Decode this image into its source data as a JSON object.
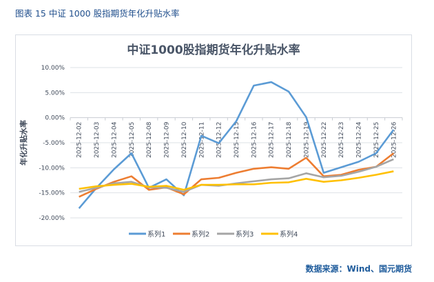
{
  "figure_label": "图表 15  中证 1000 股指期货年化升贴水率",
  "source": "数据来源：Wind、国元期货",
  "chart_data": {
    "type": "line",
    "title": "中证1000股指期货年化升贴水率",
    "xlabel": "",
    "ylabel": "年化升贴水率",
    "ylim": [
      -20,
      10
    ],
    "yticks": [
      "10.00%",
      "5.00%",
      "0.00%",
      "-5.00%",
      "-10.00%",
      "-15.00%",
      "-20.00%"
    ],
    "ytick_values": [
      10,
      5,
      0,
      -5,
      -10,
      -15,
      -20
    ],
    "grid": true,
    "legend": "bottom",
    "categories": [
      "2025-12-02",
      "2025-12-03",
      "2025-12-04",
      "2025-12-05",
      "2025-12-08",
      "2025-12-09",
      "2025-12-10",
      "2025-12-11",
      "2025-12-12",
      "2025-12-15",
      "2025-12-16",
      "2025-12-17",
      "2025-12-18",
      "2025-12-19",
      "2025-12-22",
      "2025-12-23",
      "2025-12-24",
      "2025-12-25",
      "2025-12-26"
    ],
    "series": [
      {
        "name": "系列1",
        "color": "#5b9bd5",
        "values": [
          -18.1,
          -14.0,
          -10.3,
          -7.1,
          -14.0,
          -12.3,
          -15.5,
          -3.6,
          -5.1,
          -0.7,
          6.4,
          7.1,
          5.2,
          0.1,
          -11.0,
          -9.9,
          -8.8,
          -7.1,
          -2.4
        ]
      },
      {
        "name": "系列2",
        "color": "#ed7d31",
        "values": [
          -15.8,
          -14.2,
          -12.8,
          -11.7,
          -14.4,
          -13.9,
          -15.3,
          -12.3,
          -12.0,
          -11.0,
          -10.2,
          -9.9,
          -10.2,
          -8.0,
          -11.7,
          -11.4,
          -10.4,
          -9.8,
          -7.1
        ]
      },
      {
        "name": "系列3",
        "color": "#a5a5a5",
        "values": [
          -14.8,
          -14.0,
          -13.1,
          -12.8,
          -13.9,
          -14.0,
          -14.8,
          -13.4,
          -13.6,
          -13.1,
          -12.7,
          -12.3,
          -12.1,
          -11.1,
          -11.9,
          -11.6,
          -10.8,
          -9.8,
          -8.3
        ]
      },
      {
        "name": "系列4",
        "color": "#ffc000",
        "values": [
          -14.2,
          -13.7,
          -13.4,
          -13.2,
          -13.8,
          -13.6,
          -14.4,
          -13.4,
          -13.4,
          -13.3,
          -13.3,
          -13.0,
          -12.9,
          -12.2,
          -12.8,
          -12.5,
          -12.0,
          -11.4,
          -10.7
        ]
      }
    ]
  }
}
